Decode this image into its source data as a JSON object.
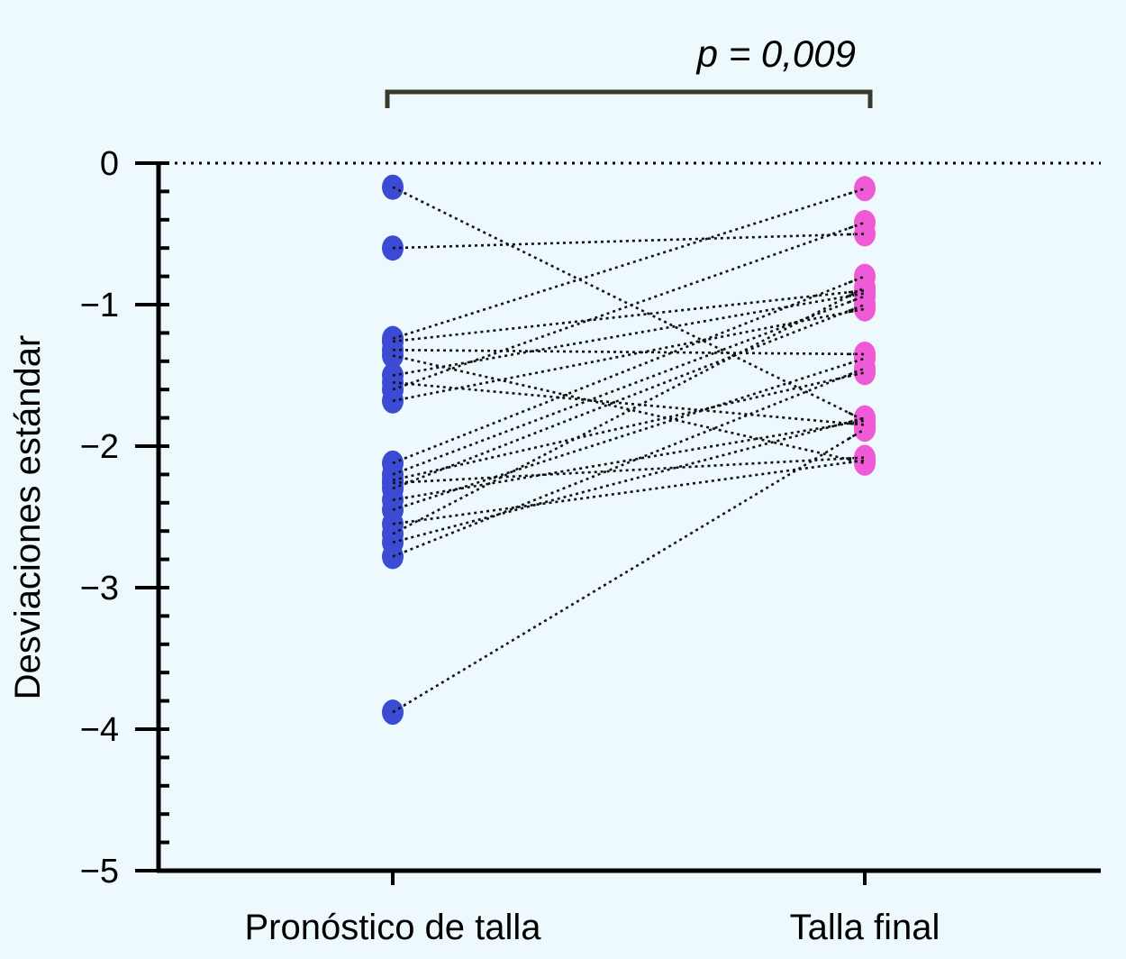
{
  "chart_data": {
    "type": "scatter",
    "title": "",
    "xlabel": "",
    "ylabel": "Desviaciones estándar",
    "categories": [
      "Pronóstico de talla",
      "Talla final"
    ],
    "ylim": [
      -5,
      0
    ],
    "yticks": [
      "0",
      "−1",
      "−2",
      "−3",
      "−4",
      "−5"
    ],
    "reference_line_y": 0,
    "annotation": "p = 0,009",
    "colors": {
      "pronostico": "#3b4bd4",
      "talla_final": "#ef5ad6",
      "background": "#eef9fe"
    },
    "pairs": [
      {
        "pronostico": -0.17,
        "talla_final": -1.82
      },
      {
        "pronostico": -0.6,
        "talla_final": -0.5
      },
      {
        "pronostico": -1.24,
        "talla_final": -0.18
      },
      {
        "pronostico": -1.26,
        "talla_final": -0.9
      },
      {
        "pronostico": -1.32,
        "talla_final": -1.35
      },
      {
        "pronostico": -1.36,
        "talla_final": -2.12
      },
      {
        "pronostico": -1.5,
        "talla_final": -0.92
      },
      {
        "pronostico": -1.55,
        "talla_final": -1.85
      },
      {
        "pronostico": -1.6,
        "talla_final": -0.42
      },
      {
        "pronostico": -1.68,
        "talla_final": -1.03
      },
      {
        "pronostico": -2.12,
        "talla_final": -0.8
      },
      {
        "pronostico": -2.2,
        "talla_final": -0.94
      },
      {
        "pronostico": -2.24,
        "talla_final": -1.48
      },
      {
        "pronostico": -2.26,
        "talla_final": -2.08
      },
      {
        "pronostico": -2.3,
        "talla_final": -1.0
      },
      {
        "pronostico": -2.38,
        "talla_final": -1.82
      },
      {
        "pronostico": -2.45,
        "talla_final": -1.38
      },
      {
        "pronostico": -2.55,
        "talla_final": -2.1
      },
      {
        "pronostico": -2.62,
        "talla_final": -0.88
      },
      {
        "pronostico": -2.68,
        "talla_final": -1.8
      },
      {
        "pronostico": -2.78,
        "talla_final": -1.45
      },
      {
        "pronostico": -3.88,
        "talla_final": -1.88
      }
    ]
  }
}
